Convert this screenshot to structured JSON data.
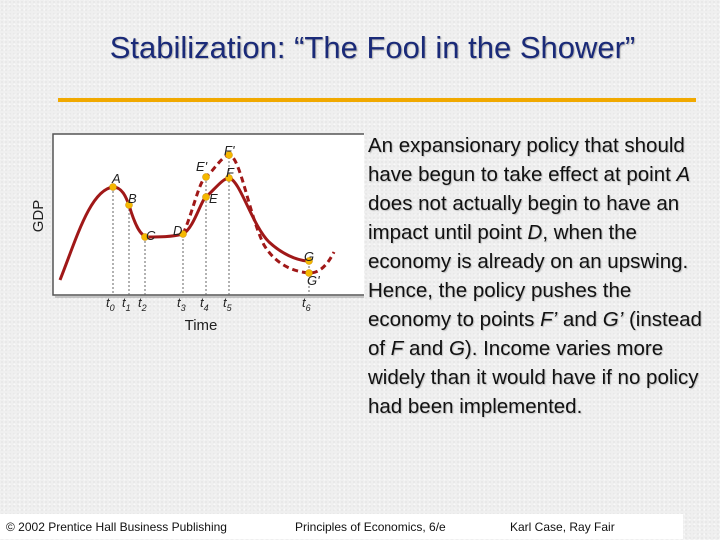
{
  "title": "Stabilization:  “The Fool in the Shower”",
  "diagram": {
    "y_axis_label": "GDP",
    "x_axis_label": "Time",
    "point_labels": [
      "A",
      "B",
      "C",
      "D",
      "E",
      "E'",
      "F",
      "F'",
      "G",
      "G'"
    ],
    "time_labels": [
      {
        "main": "t",
        "sub": "0"
      },
      {
        "main": "t",
        "sub": "1"
      },
      {
        "main": "t",
        "sub": "2"
      },
      {
        "main": "t",
        "sub": "3"
      },
      {
        "main": "t",
        "sub": "4"
      },
      {
        "main": "t",
        "sub": "5"
      },
      {
        "main": "t",
        "sub": "6"
      }
    ],
    "colors": {
      "curve": "#a01818",
      "dots": "#f5b800",
      "panel": "#ffffff"
    }
  },
  "body": {
    "s1": "An expansionary policy that should have begun to take effect at point ",
    "s1_em": "A",
    "s2": " does not actually begin to have an impact until point ",
    "s2_em": "D",
    "s3": ", when the economy is already on an upswing.  Hence, the policy pushes the economy to points ",
    "s3_em": "F’",
    "s4": " and ",
    "s4_em": "G’",
    "s5": " (instead of ",
    "s5_em": "F",
    "s6": " and ",
    "s6_em": "G",
    "s7": ").  Income varies more widely than it would have if no policy had been implemented."
  },
  "footer": {
    "left": "© 2002 Prentice Hall Business Publishing",
    "center": "Principles of Economics, 6/e",
    "right": "Karl Case, Ray Fair"
  }
}
